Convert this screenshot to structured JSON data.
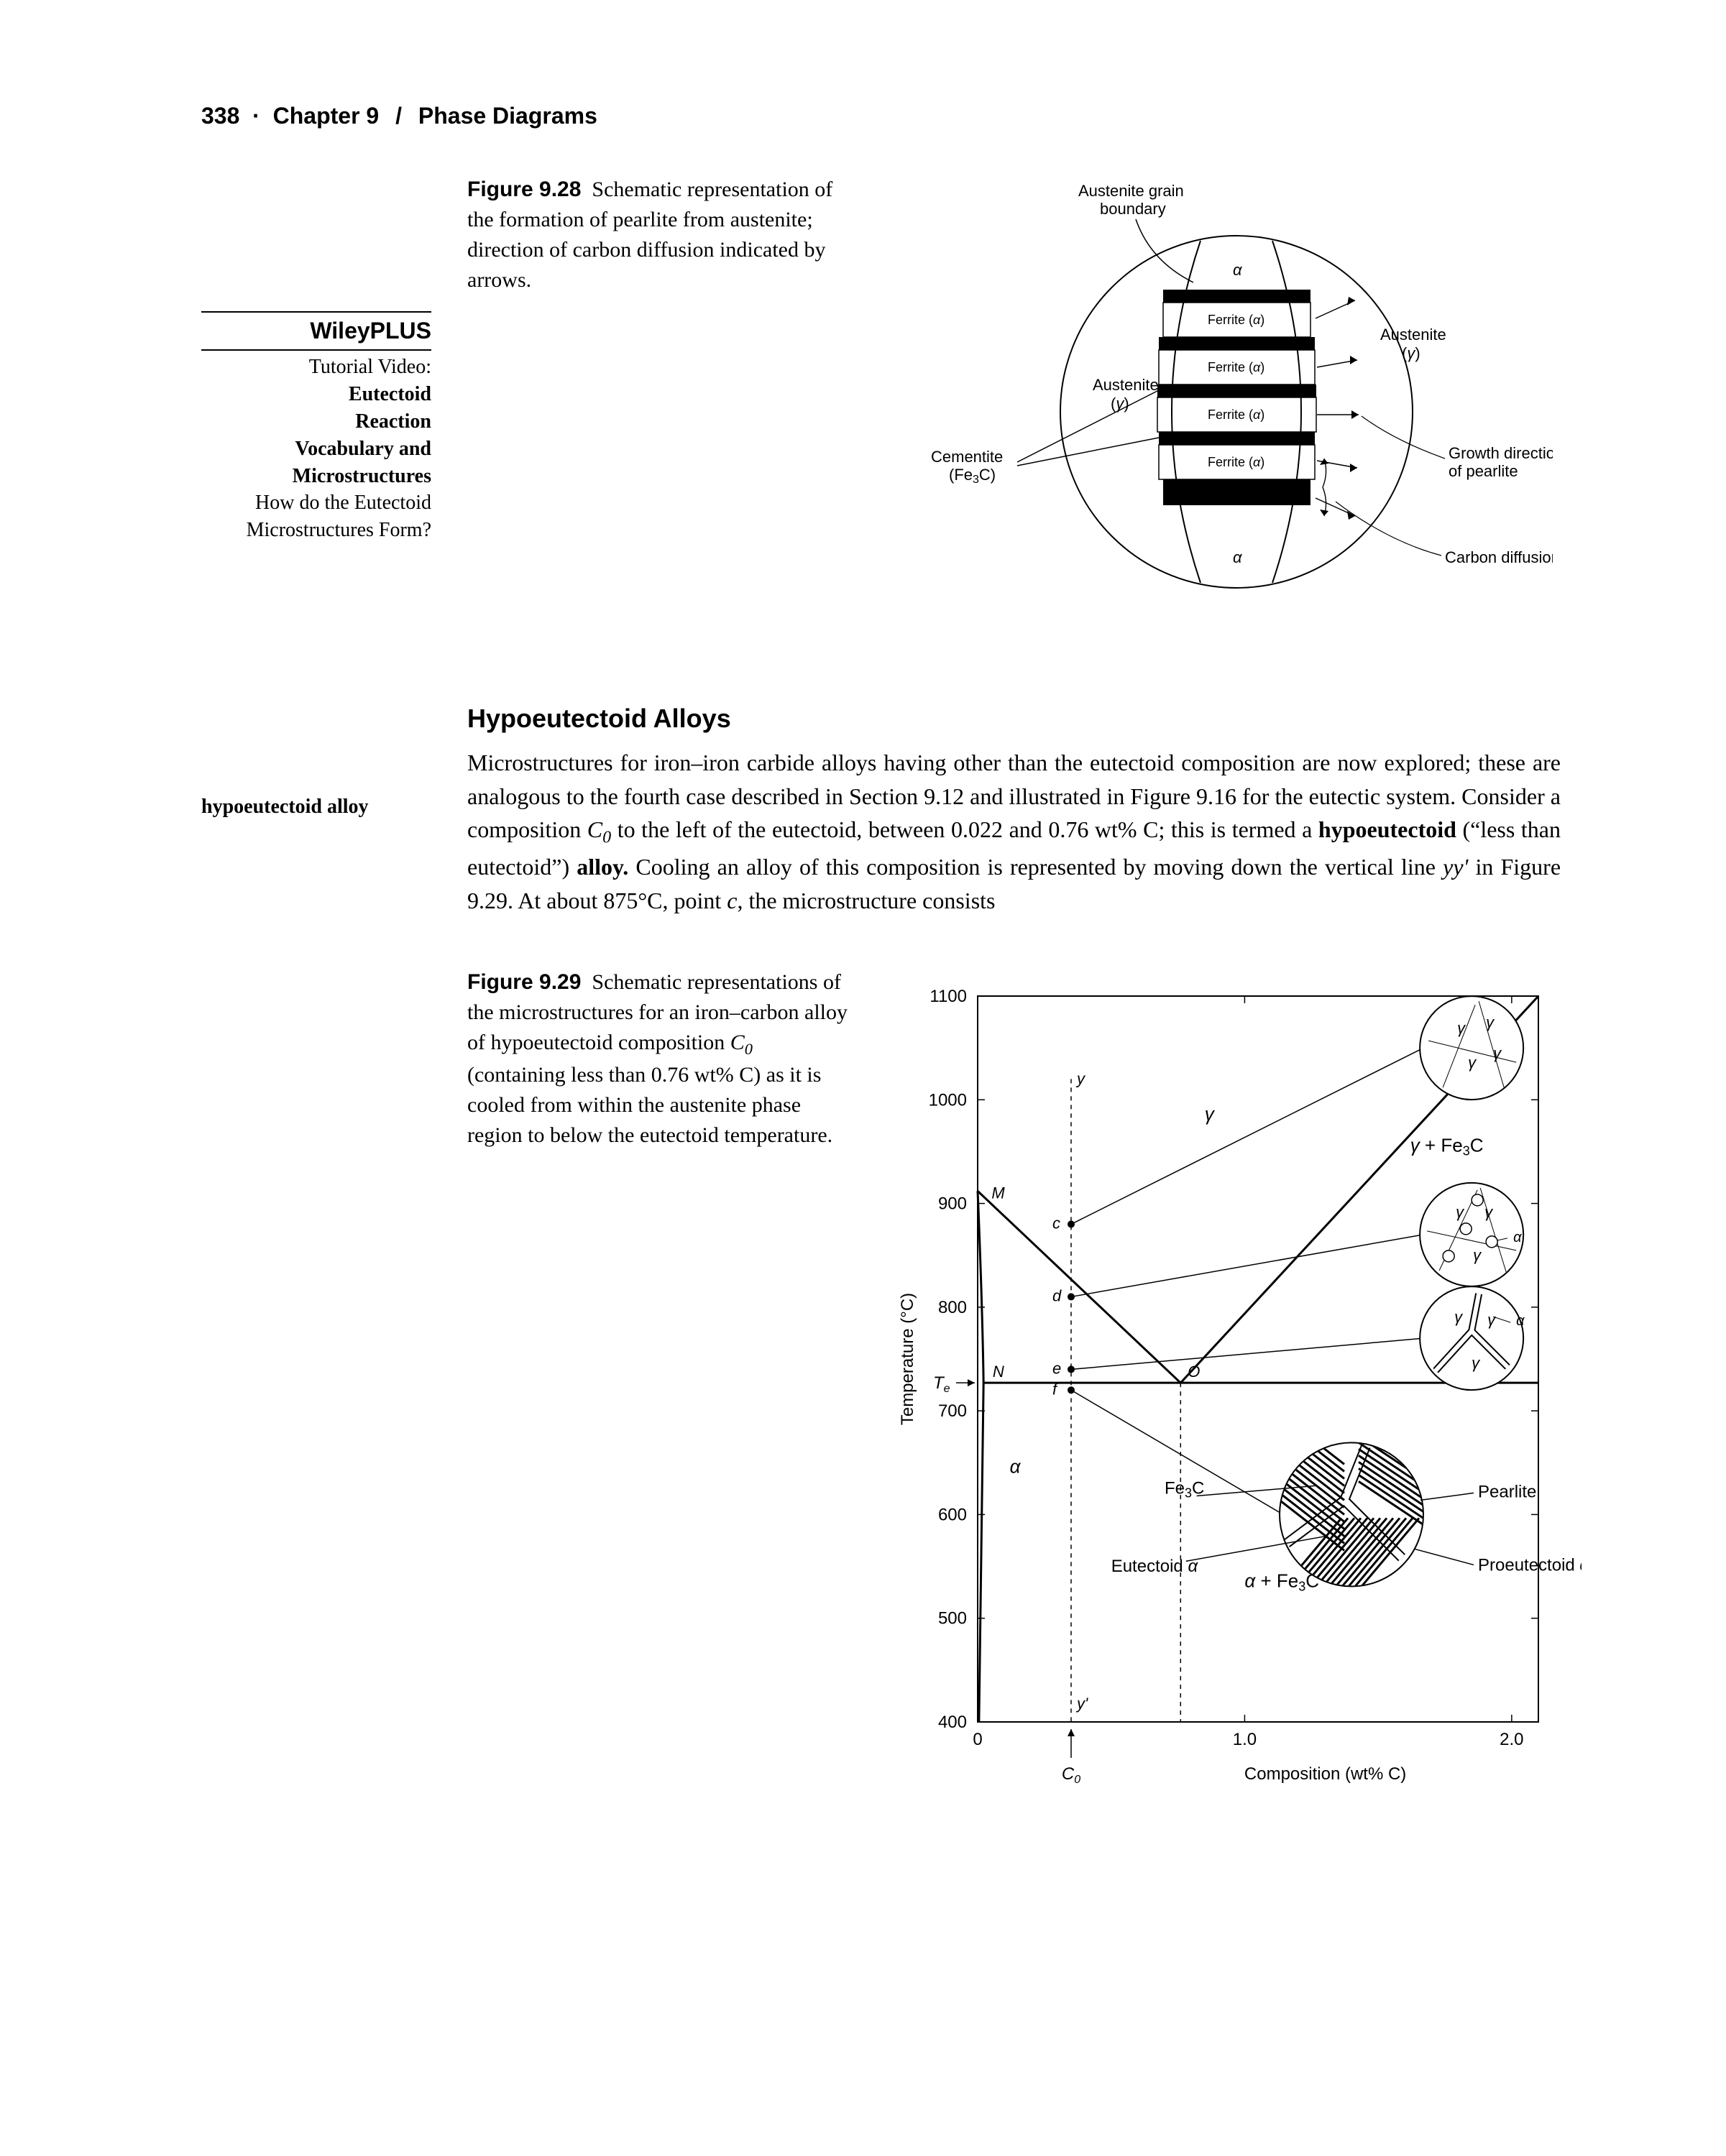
{
  "header": {
    "page_number": "338",
    "chapter_label": "Chapter 9",
    "chapter_title": "Phase Diagrams"
  },
  "wiley": {
    "brand": "WileyPLUS",
    "line1": "Tutorial Video:",
    "line2": "Eutectoid",
    "line3": "Reaction",
    "line4": "Vocabulary and",
    "line5": "Microstructures",
    "line6": "How do the Eutectoid",
    "line7": "Microstructures Form?"
  },
  "fig28": {
    "label": "Figure 9.28",
    "caption_rest": "Schematic representation of the formation of pearlite from austenite; direction of carbon diffusion indicated by arrows.",
    "labels": {
      "austenite_boundary": "Austenite grain boundary",
      "austenite_left": "Austenite (γ)",
      "austenite_right": "Austenite (γ)",
      "ferrite": "Ferrite (α)",
      "cementite": "Cementite (Fe₃C)",
      "growth": "Growth direction of pearlite",
      "carbon_diff": "Carbon diffusion",
      "alpha_top": "α",
      "alpha_bot": "α"
    },
    "style": {
      "circle_stroke": "#000000",
      "line_color": "#000000",
      "band_fill": "#000000",
      "font_size_label": 22,
      "font_size_inner": 20
    }
  },
  "section": {
    "title": "Hypoeutectoid Alloys",
    "margin_term": "hypoeutectoid alloy",
    "body_html": "Microstructures for iron–iron carbide alloys having other than the eutectoid composition are now explored; these are analogous to the fourth case described in Section 9.12 and illustrated in Figure 9.16 for the eutectic system. Consider a composition <i>C</i><span class='sub'>0</span> to the left of the eutectoid, between 0.022 and 0.76 wt% C; this is termed a <b>hypoeutectoid</b> (“less than eutectoid”) <b>alloy.</b> Cooling an alloy of this composition is represented by moving down the vertical line <i>yy'</i> in Figure 9.29. At about 875°C, point <i>c</i>, the microstructure consists"
  },
  "fig29": {
    "label": "Figure 9.29",
    "caption_rest": "Schematic representations of the microstructures for an iron–carbon alloy of hypoeutectoid composition C₀ (containing less than 0.76 wt% C) as it is cooled from within the austenite phase region to below the eutectoid temperature.",
    "axes": {
      "y_label": "Temperature (°C)",
      "x_label": "Composition (wt% C)",
      "y_ticks": [
        400,
        500,
        600,
        700,
        800,
        900,
        1000,
        1100
      ],
      "x_ticks": [
        0,
        1.0,
        2.0
      ],
      "xlim": [
        0,
        2.1
      ],
      "ylim": [
        400,
        1100
      ]
    },
    "labels": {
      "gamma_region": "γ",
      "gamma_fe3c": "γ + Fe₃C",
      "alpha_region": "α",
      "alpha_fe3c": "α + Fe₃C",
      "fe3c": "Fe₃C",
      "pearlite": "Pearlite",
      "proeutectoid": "Proeutectoid α",
      "eutectoid_alpha": "Eutectoid α",
      "C0": "C₀",
      "Te": "T e",
      "M": "M",
      "N": "N",
      "O": "O",
      "c": "c",
      "d": "d",
      "e": "e",
      "f": "f",
      "y": "y",
      "yprime": "y'"
    },
    "style": {
      "line_color": "#000000",
      "dash": "4,4",
      "font_axis": 22,
      "font_label": 22,
      "font_tick": 22,
      "plot_bg": "#ffffff"
    },
    "phase_lines": {
      "eutectoid_T": 727,
      "eutectoid_C": 0.76,
      "alpha_max_C": 0.022,
      "gamma_liquidus_pts": [
        [
          0,
          912
        ],
        [
          0.76,
          727
        ]
      ],
      "gamma_upper_pts": [
        [
          0.76,
          727
        ],
        [
          2.1,
          1100
        ]
      ],
      "C0": 0.35,
      "vertical_points": {
        "c": 880,
        "d": 810,
        "e": 740,
        "f": 720
      }
    }
  }
}
